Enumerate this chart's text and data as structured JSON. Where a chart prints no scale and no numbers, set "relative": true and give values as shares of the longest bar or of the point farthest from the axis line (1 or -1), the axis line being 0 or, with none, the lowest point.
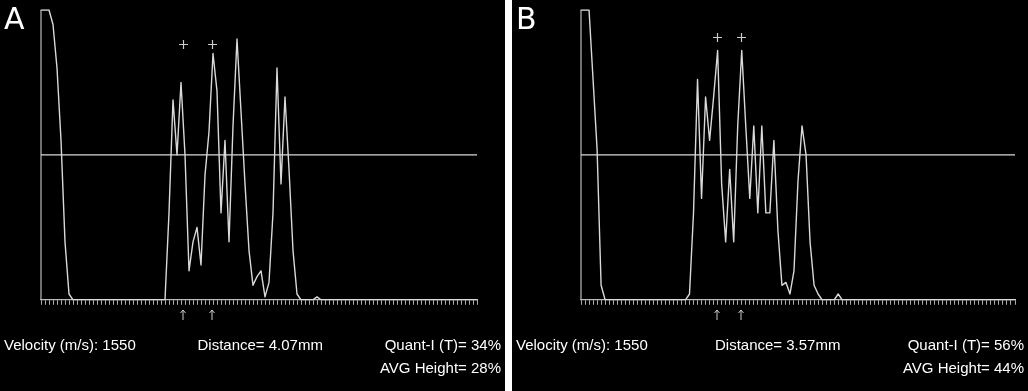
{
  "chart_data": [
    {
      "type": "line",
      "title": "A",
      "relative": true,
      "legend": false,
      "grid": false,
      "categories": [
        null,
        null,
        null,
        null,
        null,
        null,
        null,
        null,
        null,
        null,
        null,
        null,
        null,
        null,
        null,
        null,
        null,
        null,
        null,
        null,
        null,
        null,
        null,
        null,
        null,
        null,
        null,
        null,
        null,
        null,
        null,
        null,
        null,
        null,
        null,
        null,
        null,
        null,
        null,
        null,
        null,
        null,
        null,
        null,
        null,
        null,
        null,
        null,
        null,
        null,
        null,
        null,
        null,
        null,
        null,
        null,
        null,
        null,
        null,
        null,
        null,
        null,
        null,
        null,
        null,
        null,
        null,
        null,
        null,
        null,
        null,
        null,
        null,
        null,
        null,
        null,
        null,
        null,
        null,
        null,
        null,
        null,
        null,
        null,
        null,
        null,
        null,
        null,
        null,
        null,
        null,
        null,
        null,
        null,
        null,
        null,
        null,
        null,
        null,
        null,
        null,
        null,
        null,
        null,
        null,
        null,
        null,
        null,
        null,
        null
      ],
      "series": [
        {
          "color": "#d9d9d9",
          "values": [
            1,
            1,
            1,
            0.95,
            0.8,
            0.55,
            0.2,
            0.02,
            0,
            0,
            0,
            0,
            0,
            0,
            0,
            0,
            0,
            0,
            0,
            0,
            0,
            0,
            0,
            0,
            0,
            0,
            0,
            0,
            0,
            0,
            0,
            0,
            0.3,
            0.69,
            0.5,
            0.75,
            0.5,
            0.1,
            0.2,
            0.25,
            0.12,
            0.43,
            0.58,
            0.85,
            0.72,
            0.3,
            0.55,
            0.2,
            0.6,
            0.9,
            0.65,
            0.4,
            0.17,
            0.05,
            0.08,
            0.1,
            0.01,
            0.06,
            0.3,
            0.8,
            0.4,
            0.7,
            0.45,
            0.17,
            0.02,
            0,
            0,
            0,
            0,
            0.01,
            0,
            0,
            0,
            0,
            0,
            0,
            0,
            0,
            0,
            0,
            0,
            0,
            0,
            0,
            0,
            0,
            0,
            0,
            0,
            0,
            0,
            0,
            0,
            0,
            0,
            0,
            0,
            0,
            0,
            0,
            0,
            0,
            0,
            0,
            0,
            0,
            0,
            0,
            0,
            0
          ]
        }
      ],
      "ref_lines": [
        {
          "axis": "y",
          "value": 0.5,
          "color": "#d9d9d9"
        }
      ],
      "annotations": [
        "Velocity (m/s): 1550",
        "Distance= 4.07mm",
        "Quant-I (T)= 34%",
        "AVG Height= 28%"
      ]
    },
    {
      "type": "line",
      "title": "B",
      "relative": true,
      "legend": false,
      "grid": false,
      "categories": [
        null,
        null,
        null,
        null,
        null,
        null,
        null,
        null,
        null,
        null,
        null,
        null,
        null,
        null,
        null,
        null,
        null,
        null,
        null,
        null,
        null,
        null,
        null,
        null,
        null,
        null,
        null,
        null,
        null,
        null,
        null,
        null,
        null,
        null,
        null,
        null,
        null,
        null,
        null,
        null,
        null,
        null,
        null,
        null,
        null,
        null,
        null,
        null,
        null,
        null,
        null,
        null,
        null,
        null,
        null,
        null,
        null,
        null,
        null,
        null,
        null,
        null,
        null,
        null,
        null,
        null,
        null,
        null,
        null,
        null,
        null,
        null,
        null,
        null,
        null,
        null,
        null,
        null,
        null,
        null,
        null,
        null,
        null,
        null,
        null,
        null,
        null,
        null,
        null,
        null,
        null,
        null,
        null,
        null,
        null,
        null,
        null,
        null,
        null,
        null,
        null,
        null,
        null,
        null,
        null,
        null,
        null,
        null,
        null
      ],
      "series": [
        {
          "color": "#d9d9d9",
          "values": [
            1,
            1,
            1,
            0.76,
            0.52,
            0.05,
            0,
            0,
            0,
            0,
            0,
            0,
            0,
            0,
            0,
            0,
            0,
            0,
            0,
            0,
            0,
            0,
            0,
            0,
            0,
            0,
            0,
            0.02,
            0.3,
            0.76,
            0.35,
            0.7,
            0.55,
            0.7,
            0.86,
            0.4,
            0.2,
            0.45,
            0.2,
            0.6,
            0.86,
            0.6,
            0.35,
            0.6,
            0.3,
            0.6,
            0.3,
            0.3,
            0.55,
            0.24,
            0.05,
            0.06,
            0.02,
            0.1,
            0.41,
            0.6,
            0.5,
            0.2,
            0.05,
            0.02,
            0,
            0,
            0,
            0,
            0.02,
            0,
            0,
            0,
            0,
            0,
            0,
            0,
            0,
            0,
            0,
            0,
            0,
            0,
            0,
            0,
            0,
            0,
            0,
            0,
            0,
            0,
            0,
            0,
            0,
            0,
            0,
            0,
            0,
            0,
            0,
            0,
            0,
            0,
            0,
            0,
            0,
            0,
            0,
            0,
            0,
            0,
            0,
            0,
            0
          ]
        }
      ],
      "ref_lines": [
        {
          "axis": "y",
          "value": 0.5,
          "color": "#d9d9d9"
        }
      ],
      "annotations": [
        "Velocity (m/s): 1550",
        "Distance= 3.57mm",
        "Quant-I (T)= 56%",
        "AVG Height= 44%"
      ]
    }
  ]
}
